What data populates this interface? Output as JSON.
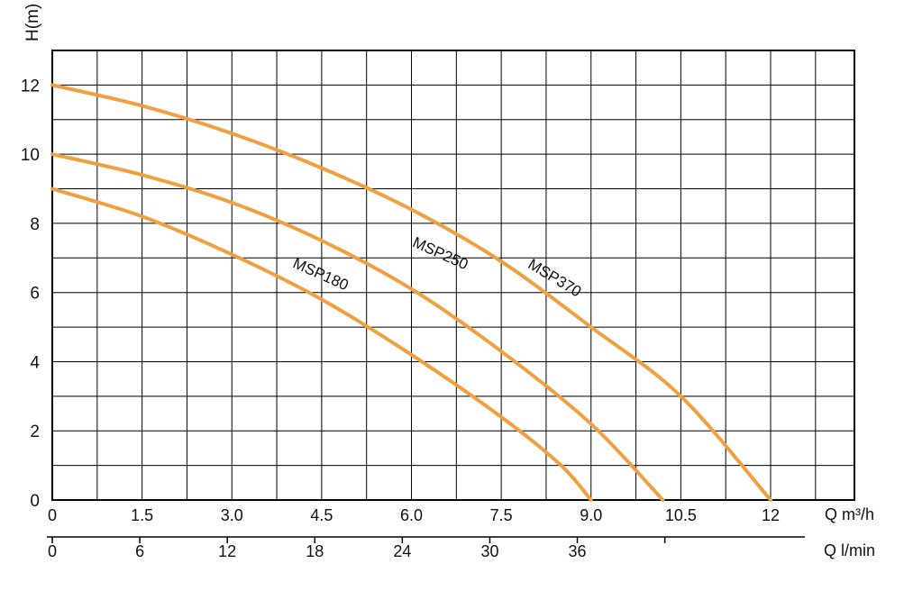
{
  "chart_data": {
    "type": "line",
    "ylabel": "H(m)",
    "xlabel": "Q m³/h",
    "x2label": "Q l/min",
    "x_ticks": [
      "0",
      "1.5",
      "3.0",
      "4.5",
      "6.0",
      "7.5",
      "9.0",
      "10.5",
      "12"
    ],
    "x_tick_values": [
      0,
      1.5,
      3.0,
      4.5,
      6.0,
      7.5,
      9.0,
      10.5,
      12
    ],
    "x2_ticks": [
      "0",
      "6",
      "12",
      "18",
      "24",
      "30",
      "36"
    ],
    "x2_tick_values": [
      0,
      6,
      12,
      18,
      24,
      30,
      36
    ],
    "y_ticks": [
      "0",
      "2",
      "4",
      "6",
      "8",
      "10",
      "12"
    ],
    "y_tick_values": [
      0,
      2,
      4,
      6,
      8,
      10,
      12
    ],
    "xlim": [
      0,
      13.4
    ],
    "ylim": [
      0,
      13
    ],
    "x2lim": [
      0,
      55
    ],
    "grid": true,
    "line_color": "#f0a040",
    "series": [
      {
        "name": "MSP180",
        "x": [
          0,
          1.5,
          3.0,
          4.5,
          6.0,
          7.5,
          8.5,
          9.0
        ],
        "y": [
          9.0,
          8.2,
          7.1,
          5.8,
          4.2,
          2.4,
          1.0,
          0
        ]
      },
      {
        "name": "MSP250",
        "x": [
          0,
          1.5,
          3.0,
          4.5,
          6.0,
          7.5,
          9.0,
          10.2
        ],
        "y": [
          10.0,
          9.4,
          8.6,
          7.5,
          6.1,
          4.3,
          2.2,
          0
        ]
      },
      {
        "name": "MSP370",
        "x": [
          0,
          1.5,
          3.0,
          4.5,
          6.0,
          7.5,
          9.0,
          10.5,
          12.0
        ],
        "y": [
          12.0,
          11.4,
          10.6,
          9.6,
          8.4,
          6.9,
          5.0,
          3.0,
          0
        ]
      }
    ]
  }
}
